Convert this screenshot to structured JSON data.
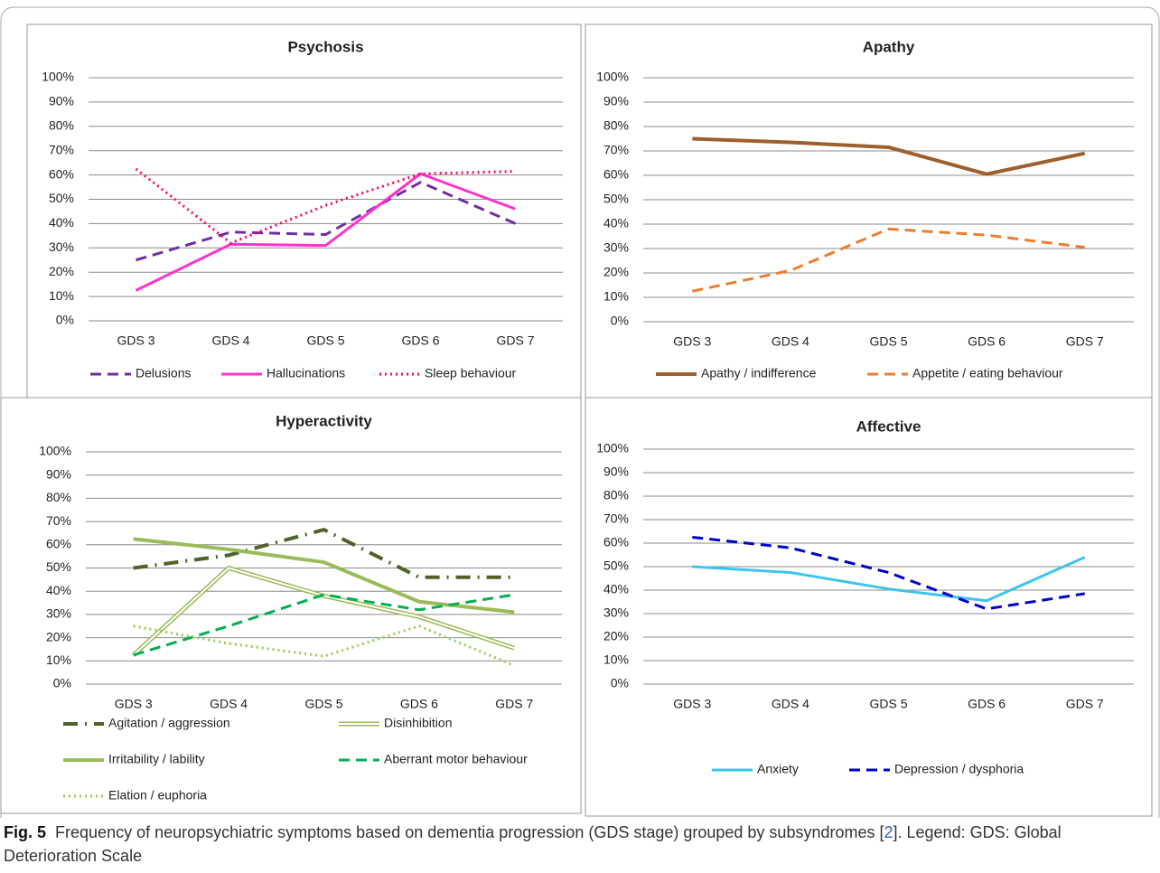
{
  "chart_data": [
    {
      "type": "line",
      "title": "Psychosis",
      "categories": [
        "GDS 3",
        "GDS 4",
        "GDS 5",
        "GDS 6",
        "GDS 7"
      ],
      "ylim": [
        0,
        100
      ],
      "yticks": [
        {
          "value": 0,
          "label": "0%"
        },
        {
          "value": 10,
          "label": "10%"
        },
        {
          "value": 20,
          "label": "20%"
        },
        {
          "value": 30,
          "label": "30%"
        },
        {
          "value": 40,
          "label": "40%"
        },
        {
          "value": 50,
          "label": "50%"
        },
        {
          "value": 60,
          "label": "60%"
        },
        {
          "value": 70,
          "label": "70%"
        },
        {
          "value": 80,
          "label": "80%"
        },
        {
          "value": 90,
          "label": "90%"
        },
        {
          "value": 100,
          "label": "100%"
        }
      ],
      "grid": true,
      "series": [
        {
          "name": "Delusions",
          "color": "#7030a0",
          "style": "dashed",
          "values": [
            25,
            36.5,
            35.5,
            57,
            40
          ]
        },
        {
          "name": "Hallucinations",
          "color": "#ff33cc",
          "style": "solid",
          "values": [
            12.5,
            31.5,
            31,
            60.5,
            46
          ]
        },
        {
          "name": "Sleep behaviour",
          "color": "#ff0066",
          "style": "dotted",
          "values": [
            62.5,
            32,
            47.5,
            60.5,
            61.5
          ]
        }
      ]
    },
    {
      "type": "line",
      "title": "Apathy",
      "categories": [
        "GDS 3",
        "GDS 4",
        "GDS 5",
        "GDS 6",
        "GDS 7"
      ],
      "ylim": [
        0,
        100
      ],
      "yticks": [
        {
          "value": 0,
          "label": "0%"
        },
        {
          "value": 10,
          "label": "10%"
        },
        {
          "value": 20,
          "label": "20%"
        },
        {
          "value": 30,
          "label": "30%"
        },
        {
          "value": 40,
          "label": "40%"
        },
        {
          "value": 50,
          "label": "50%"
        },
        {
          "value": 60,
          "label": "60%"
        },
        {
          "value": 70,
          "label": "70%"
        },
        {
          "value": 80,
          "label": "80%"
        },
        {
          "value": 90,
          "label": "90%"
        },
        {
          "value": 100,
          "label": "100%"
        }
      ],
      "grid": true,
      "series": [
        {
          "name": "Apathy / indifference",
          "color": "#9c5f2d",
          "style": "thick",
          "values": [
            75,
            73.5,
            71.5,
            60.5,
            69
          ]
        },
        {
          "name": "Appetite / eating behaviour",
          "color": "#ed7d31",
          "style": "dashed",
          "values": [
            12.5,
            21,
            38,
            35.5,
            30.5
          ]
        }
      ]
    },
    {
      "type": "line",
      "title": "Hyperactivity",
      "categories": [
        "GDS 3",
        "GDS 4",
        "GDS 5",
        "GDS 6",
        "GDS 7"
      ],
      "ylim": [
        0,
        100
      ],
      "yticks": [
        {
          "value": 0,
          "label": "0%"
        },
        {
          "value": 10,
          "label": "10%"
        },
        {
          "value": 20,
          "label": "20%"
        },
        {
          "value": 30,
          "label": "30%"
        },
        {
          "value": 40,
          "label": "40%"
        },
        {
          "value": 50,
          "label": "50%"
        },
        {
          "value": 60,
          "label": "60%"
        },
        {
          "value": 70,
          "label": "70%"
        },
        {
          "value": 80,
          "label": "80%"
        },
        {
          "value": 90,
          "label": "90%"
        },
        {
          "value": 100,
          "label": "100%"
        }
      ],
      "grid": true,
      "series": [
        {
          "name": "Agitation / aggression",
          "color": "#4f6228",
          "style": "dashdot",
          "values": [
            50,
            55.5,
            66.5,
            46,
            46
          ]
        },
        {
          "name": "Disinhibition",
          "color": "#9bbb59",
          "style": "double",
          "values": [
            12.5,
            50,
            38,
            29,
            15.5
          ]
        },
        {
          "name": "Irritability / lability",
          "color": "#9bbb59",
          "style": "thick",
          "values": [
            62.5,
            58,
            52.5,
            35.5,
            31
          ]
        },
        {
          "name": "Aberrant motor behaviour",
          "color": "#00b050",
          "style": "dashed",
          "values": [
            12.5,
            25,
            38.5,
            32,
            38.5
          ]
        },
        {
          "name": "Elation / euphoria",
          "color": "#92d050",
          "style": "dotted",
          "values": [
            25,
            17.5,
            12,
            25,
            8
          ]
        }
      ]
    },
    {
      "type": "line",
      "title": "Affective",
      "categories": [
        "GDS 3",
        "GDS 4",
        "GDS 5",
        "GDS 6",
        "GDS 7"
      ],
      "ylim": [
        0,
        100
      ],
      "yticks": [
        {
          "value": 0,
          "label": "0%"
        },
        {
          "value": 10,
          "label": "10%"
        },
        {
          "value": 20,
          "label": "20%"
        },
        {
          "value": 30,
          "label": "30%"
        },
        {
          "value": 40,
          "label": "40%"
        },
        {
          "value": 50,
          "label": "50%"
        },
        {
          "value": 60,
          "label": "60%"
        },
        {
          "value": 70,
          "label": "70%"
        },
        {
          "value": 80,
          "label": "80%"
        },
        {
          "value": 90,
          "label": "90%"
        },
        {
          "value": 100,
          "label": "100%"
        }
      ],
      "grid": true,
      "series": [
        {
          "name": "Anxiety",
          "color": "#3ec4f0",
          "style": "solid",
          "values": [
            50,
            47.5,
            40.5,
            35.5,
            54
          ]
        },
        {
          "name": "Depression / dysphoria",
          "color": "#0000cc",
          "style": "dashed",
          "values": [
            62.5,
            58,
            47.5,
            32,
            38.5
          ]
        }
      ]
    }
  ],
  "caption": {
    "label": "Fig. 5",
    "text": "Frequency of neuropsychiatric symptoms based on dementia progression (GDS stage) grouped by subsyndromes [",
    "ref": "2",
    "text_end": "]. Legend: GDS: Global Deterioration Scale"
  }
}
